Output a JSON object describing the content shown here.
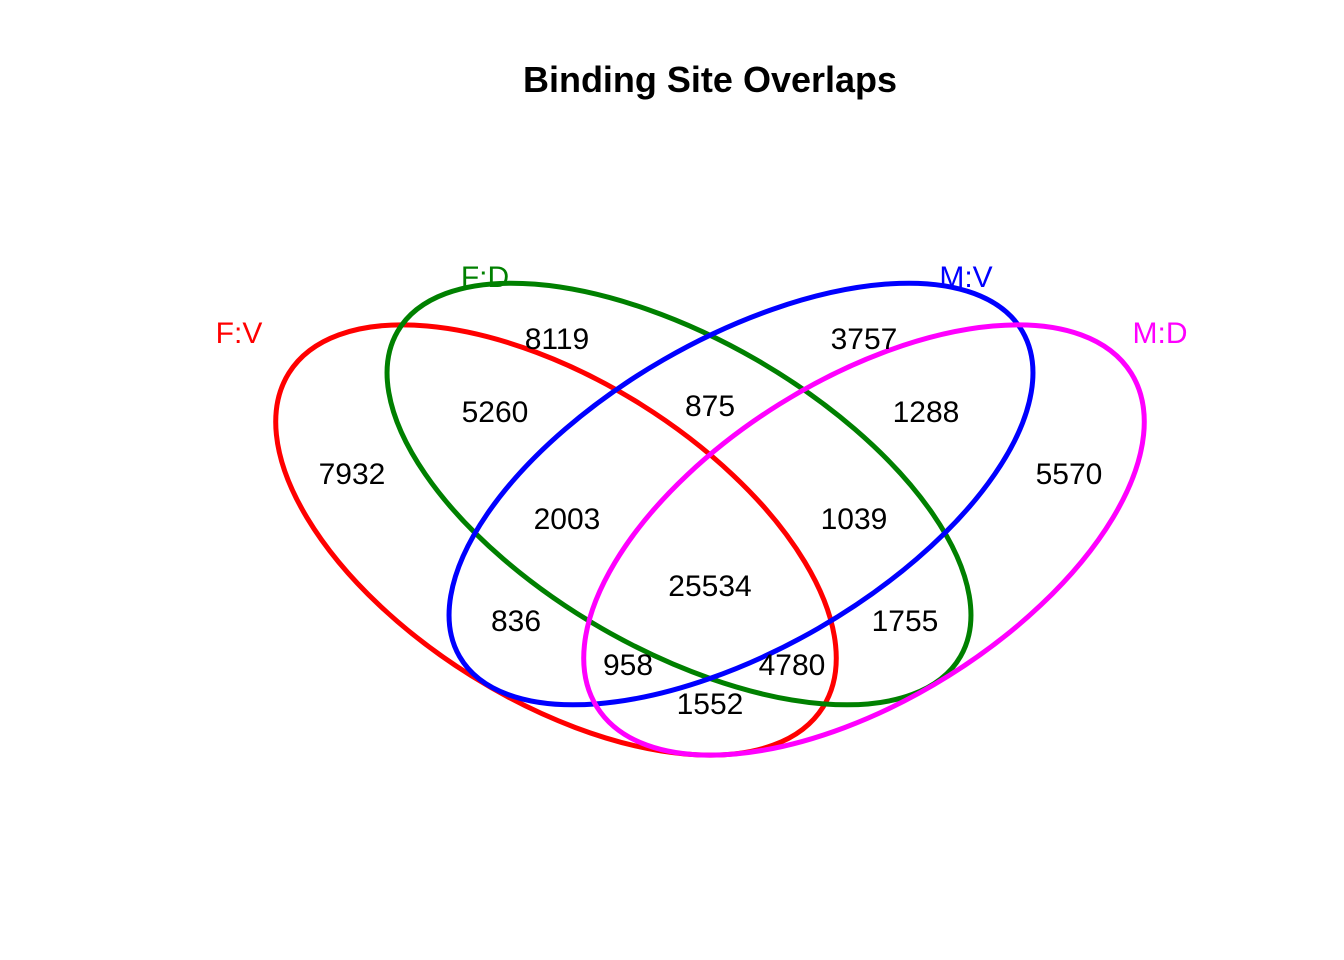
{
  "title": "Binding Site Overlaps",
  "sets": [
    {
      "key": "FV",
      "label": "F:V",
      "color": "#ff0000"
    },
    {
      "key": "FD",
      "label": "F:D",
      "color": "#008000"
    },
    {
      "key": "MV",
      "label": "M:V",
      "color": "#0000ff"
    },
    {
      "key": "MD",
      "label": "M:D",
      "color": "#ff00ff"
    }
  ],
  "regions": {
    "FV_only": "7932",
    "FD_only": "8119",
    "MV_only": "3757",
    "MD_only": "5570",
    "FV_FD": "5260",
    "FD_MV": "875",
    "MV_MD": "1288",
    "FV_FD_MV": "2003",
    "FD_MV_MD": "1039",
    "all": "25534",
    "FV_MV": "836",
    "FD_MD": "1755",
    "FV_MV_MD": "958",
    "FV_FD_MD": "4780",
    "FV_MD": "1552"
  }
}
